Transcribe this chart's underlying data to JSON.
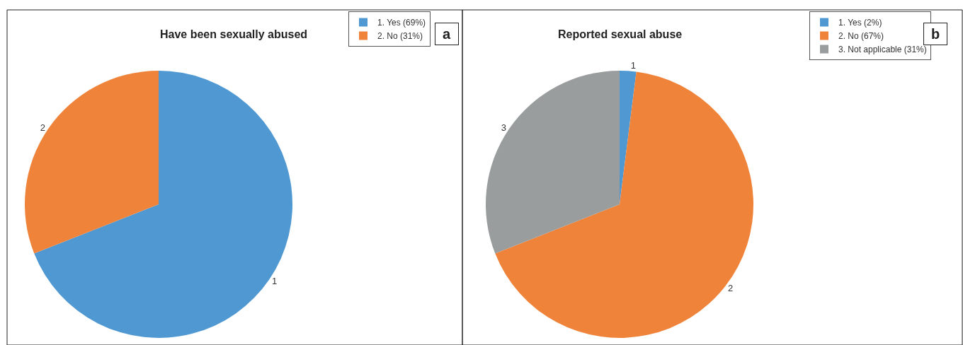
{
  "chart_data": [
    {
      "type": "pie",
      "title": "Have been sexually abused",
      "categories": [
        "1. Yes (69%)",
        "2. No (31%)"
      ],
      "values": [
        69,
        31
      ],
      "colors": [
        "#4f98d2",
        "#f0833a"
      ],
      "legend": "top right",
      "annotations": [
        "a",
        "1",
        "2"
      ]
    },
    {
      "type": "pie",
      "title": "Reported sexual abuse",
      "categories": [
        "1. Yes (2%)",
        "2. No (67%)",
        "3. Not applicable (31%)"
      ],
      "values": [
        2,
        67,
        31
      ],
      "colors": [
        "#4f98d2",
        "#f0833a",
        "#999d9e"
      ],
      "legend": "top right",
      "annotations": [
        "b",
        "1",
        "2",
        "3"
      ]
    }
  ]
}
